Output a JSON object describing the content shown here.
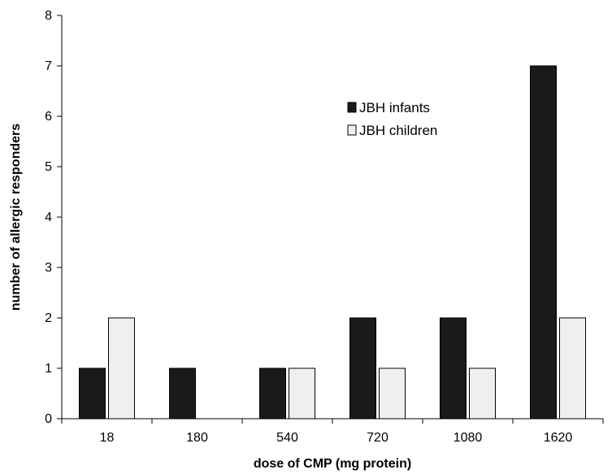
{
  "chart_data": {
    "type": "bar",
    "title": "",
    "xlabel": "dose of CMP (mg protein)",
    "ylabel": "number of allergic responders",
    "categories": [
      "18",
      "180",
      "540",
      "720",
      "1080",
      "1620"
    ],
    "series": [
      {
        "name": "JBH infants",
        "values": [
          1,
          1,
          1,
          2,
          2,
          7
        ],
        "color": "#1a1a1a"
      },
      {
        "name": "JBH children",
        "values": [
          2,
          0,
          1,
          1,
          1,
          2
        ],
        "color": "#efefef"
      }
    ],
    "ylim": [
      0,
      8
    ],
    "yticks": [
      0,
      1,
      2,
      3,
      4,
      5,
      6,
      7,
      8
    ],
    "grid": false,
    "legend_position": "upper-center"
  }
}
